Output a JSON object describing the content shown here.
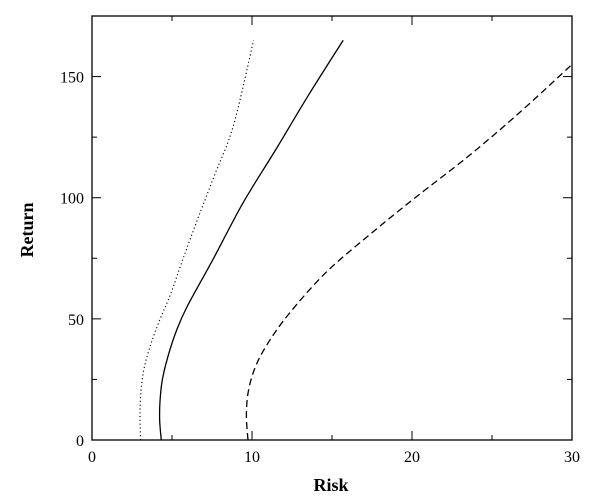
{
  "chart_data": {
    "type": "line",
    "title": "",
    "xlabel": "Risk",
    "ylabel": "Return",
    "xlim": [
      0,
      30
    ],
    "ylim": [
      0,
      175
    ],
    "xticks": [
      0,
      10,
      20,
      30
    ],
    "yticks": [
      0,
      50,
      100,
      150
    ],
    "grid": false,
    "legend": "none",
    "series": [
      {
        "style": "dotted",
        "color": "#000000",
        "x": [
          3.04,
          3.0,
          3.06,
          3.27,
          3.7,
          4.26,
          4.9,
          5.7,
          6.65,
          7.7,
          8.85,
          10.1
        ],
        "y": [
          0,
          10,
          20,
          30,
          40,
          50,
          60,
          75,
          92,
          110,
          130,
          165
        ]
      },
      {
        "style": "solid",
        "color": "#000000",
        "x": [
          4.33,
          4.23,
          4.25,
          4.4,
          4.77,
          5.27,
          5.94,
          7.6,
          9.45,
          11.5,
          13.5,
          15.7
        ],
        "y": [
          0,
          8,
          16,
          25,
          35,
          45,
          55,
          75,
          98,
          120,
          142,
          165
        ]
      },
      {
        "style": "dashed",
        "color": "#000000",
        "x": [
          9.75,
          9.65,
          9.77,
          10.2,
          11.0,
          12.3,
          14.6,
          17.4,
          20.2,
          23.5,
          26.7,
          30.0
        ],
        "y": [
          0,
          10,
          20,
          30,
          40,
          52,
          69,
          85,
          100,
          117,
          135,
          155
        ]
      }
    ]
  }
}
